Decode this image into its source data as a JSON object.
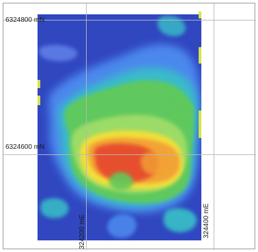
{
  "map": {
    "northing_labels": [
      "6324800 mN",
      "6324600 mN"
    ],
    "easting_labels": [
      "324200 mE",
      "324400 mE"
    ],
    "colors": {
      "low": "#2d3fb8",
      "mid": "#4d8cf0",
      "teal": "#39c0c7",
      "green": "#61c95b",
      "light_green": "#9ddc67",
      "yellow": "#f3df3b",
      "orange": "#f3a135",
      "red": "#e64b2f",
      "border": "#9a9a9a",
      "grid": "#b8b8b8"
    },
    "grid": "on",
    "legend": "none"
  }
}
